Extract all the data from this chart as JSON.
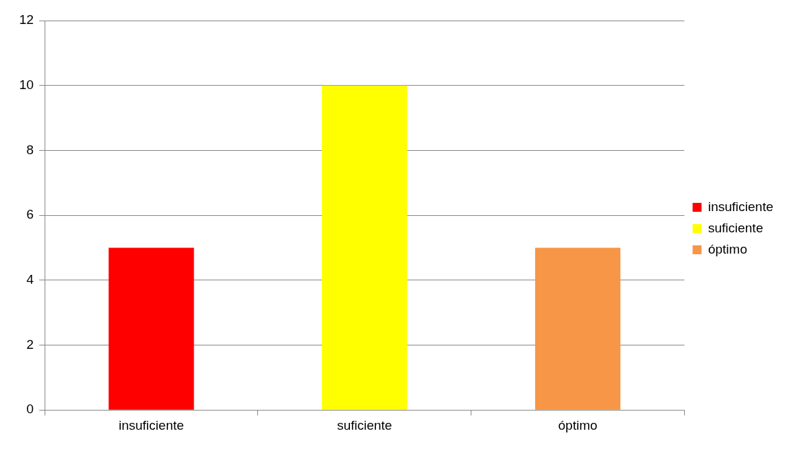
{
  "chart_data": {
    "type": "bar",
    "categories": [
      "insuficiente",
      "suficiente",
      "óptimo"
    ],
    "series": [
      {
        "name": "insuficiente",
        "color": "#ff0000",
        "values": [
          5,
          null,
          null
        ]
      },
      {
        "name": "suficiente",
        "color": "#ffff00",
        "values": [
          null,
          10,
          null
        ]
      },
      {
        "name": "óptimo",
        "color": "#f79646",
        "values": [
          null,
          null,
          5
        ]
      }
    ],
    "ylim": [
      0,
      12
    ],
    "yticks": [
      0,
      2,
      4,
      6,
      8,
      10,
      12
    ],
    "grid": "y",
    "legend": "right"
  }
}
